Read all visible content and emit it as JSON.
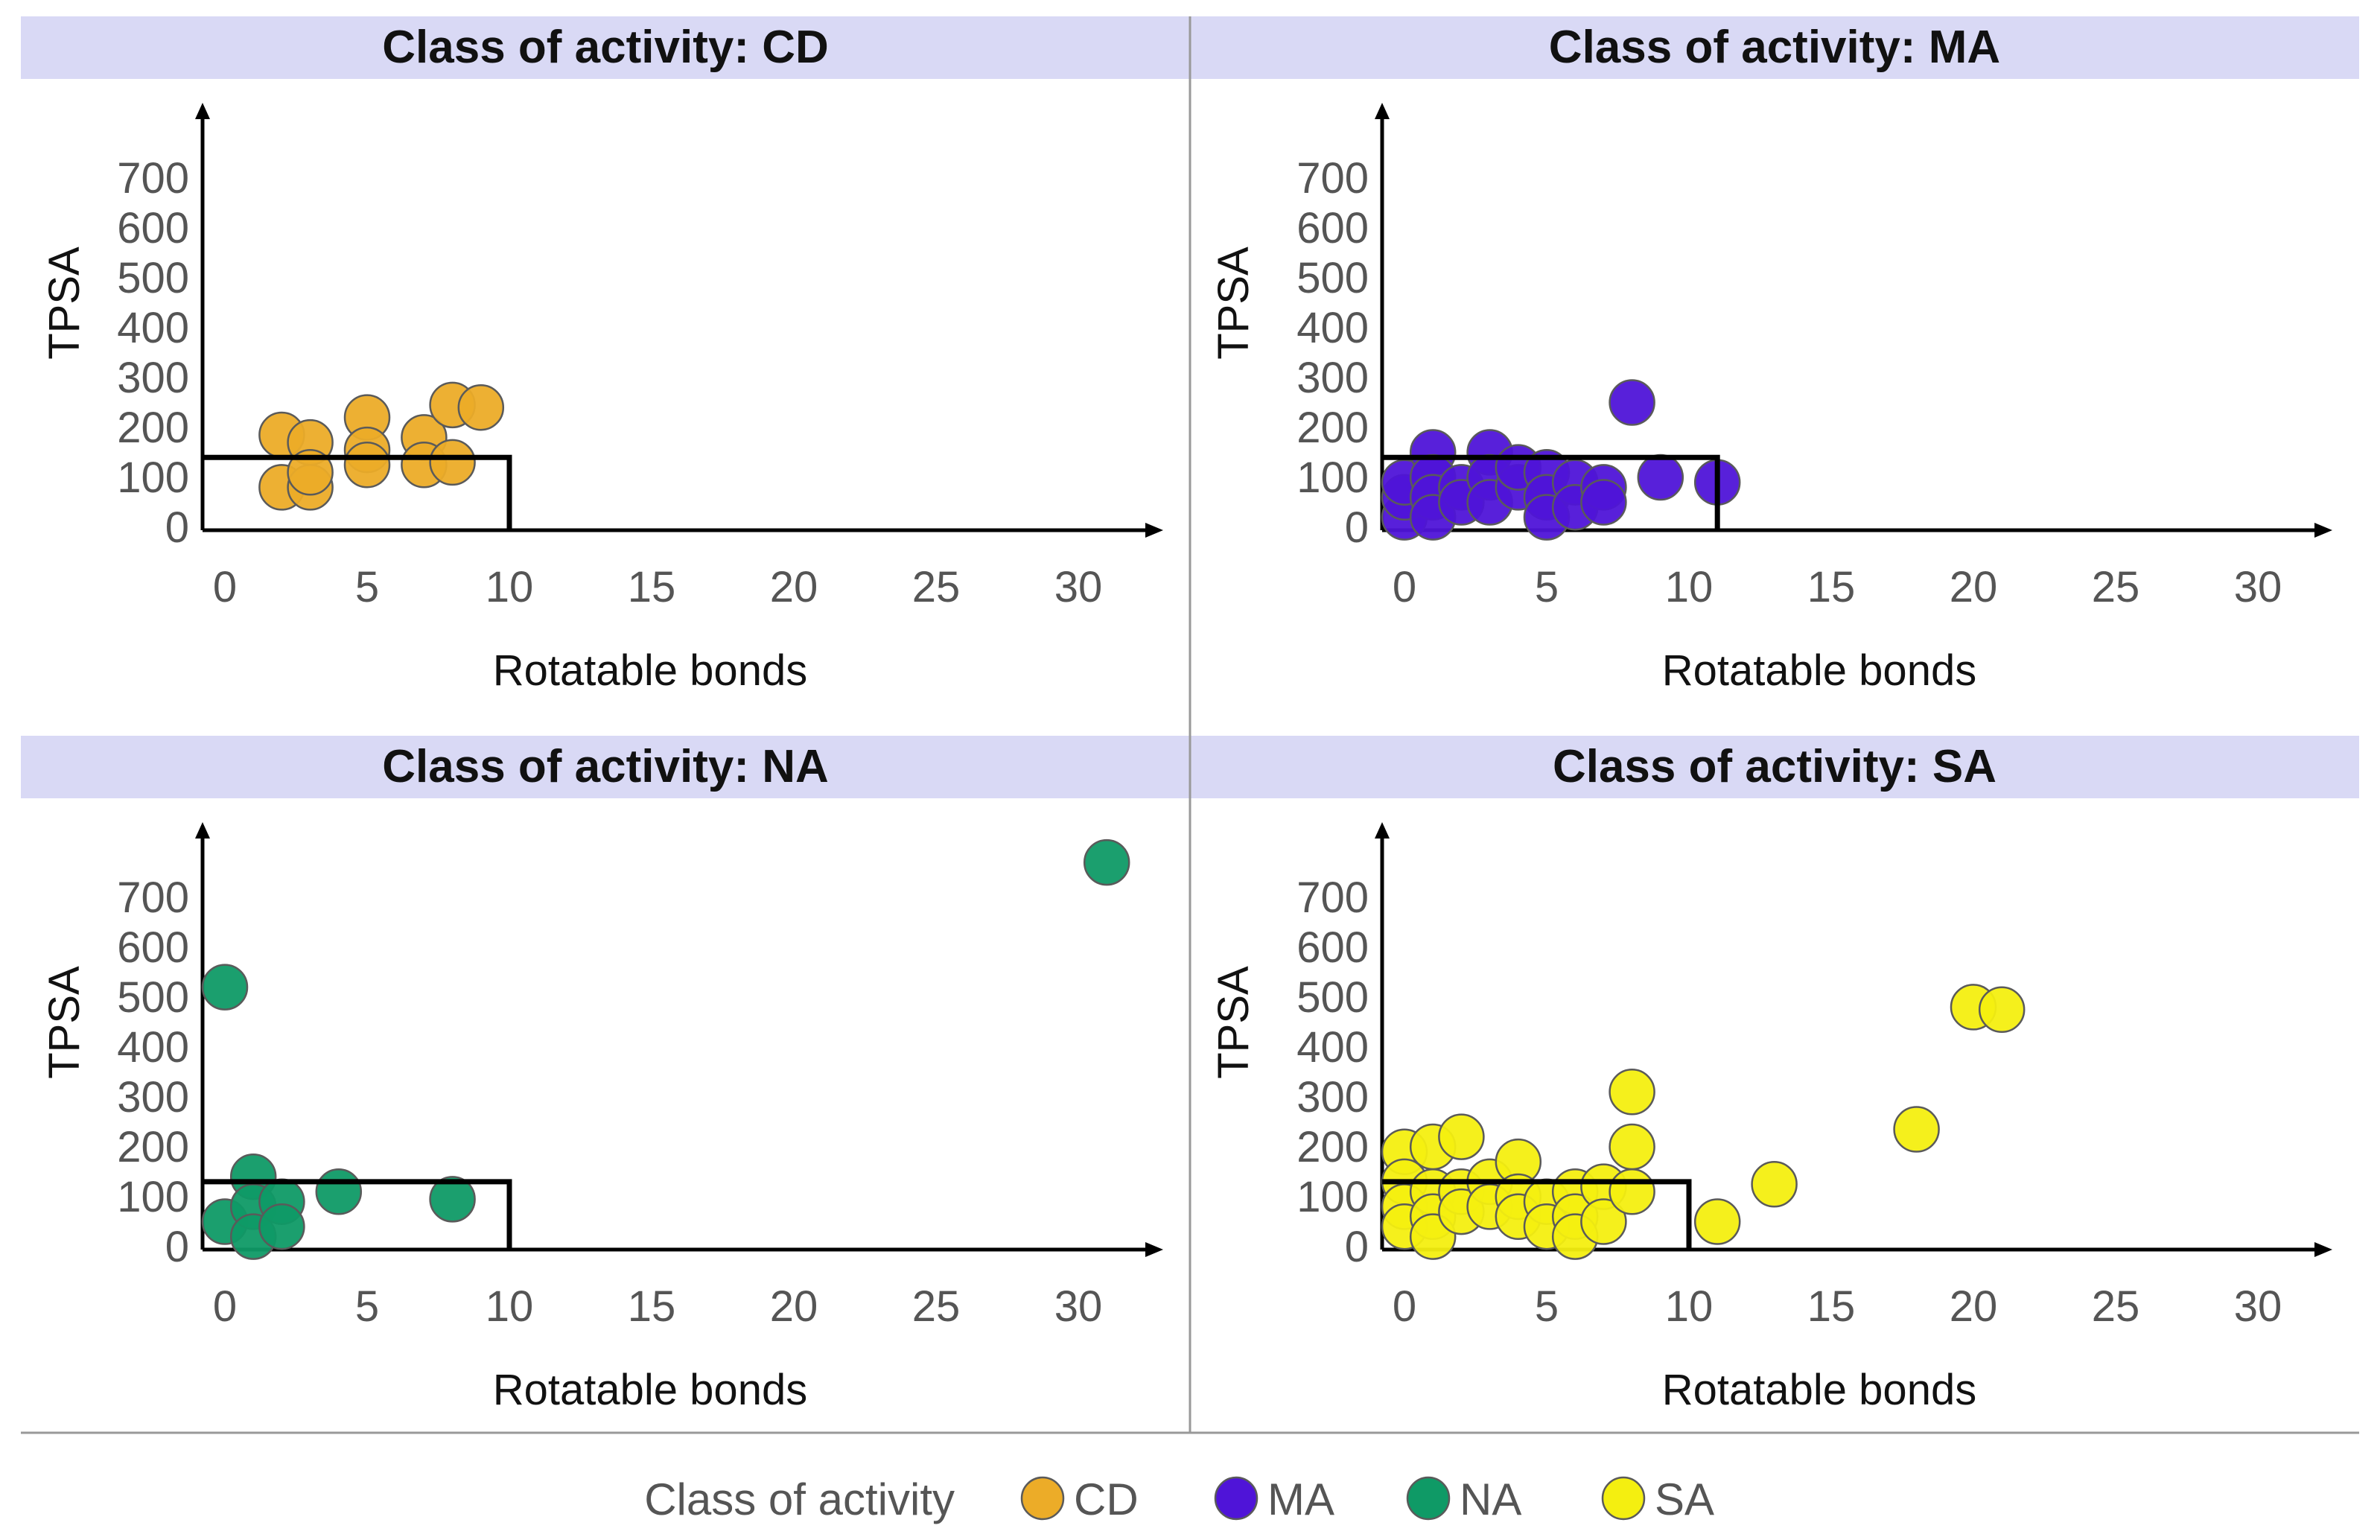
{
  "colors": {
    "strip_bg": "#d9d9f5",
    "CD": "#ecac28",
    "MA": "#4f14d8",
    "NA": "#0f9a66",
    "SA": "#f4ef10",
    "threshold": "#000000",
    "separator": "#999999"
  },
  "legend": {
    "title": "Class of activity",
    "items": [
      "CD",
      "MA",
      "NA",
      "SA"
    ]
  },
  "chart_data": [
    {
      "type": "scatter",
      "class": "CD",
      "title": "Class of activity: CD",
      "xlabel": "Rotatable bonds",
      "ylabel": "TPSA",
      "xlim": [
        -0.8,
        32.3
      ],
      "ylim": [
        -10,
        830
      ],
      "xticks": [
        0,
        5,
        10,
        15,
        20,
        25,
        30
      ],
      "yticks": [
        0,
        100,
        200,
        300,
        400,
        500,
        600,
        700
      ],
      "threshold": {
        "x": 10,
        "y": 140
      },
      "points": [
        [
          2,
          185
        ],
        [
          3,
          170
        ],
        [
          2,
          80
        ],
        [
          3,
          80
        ],
        [
          3,
          110
        ],
        [
          5,
          220
        ],
        [
          5,
          155
        ],
        [
          5,
          125
        ],
        [
          7,
          180
        ],
        [
          7,
          125
        ],
        [
          8,
          245
        ],
        [
          8,
          130
        ],
        [
          9,
          240
        ]
      ]
    },
    {
      "type": "scatter",
      "class": "MA",
      "title": "Class of activity: MA",
      "xlabel": "Rotatable bonds",
      "ylabel": "TPSA",
      "xlim": [
        -0.8,
        32.3
      ],
      "ylim": [
        -10,
        830
      ],
      "xticks": [
        0,
        5,
        10,
        15,
        20,
        25,
        30
      ],
      "yticks": [
        0,
        100,
        200,
        300,
        400,
        500,
        600,
        700
      ],
      "threshold": {
        "x": 11,
        "y": 140
      },
      "points": [
        [
          0,
          20
        ],
        [
          0,
          60
        ],
        [
          0,
          90
        ],
        [
          1,
          150
        ],
        [
          1,
          100
        ],
        [
          1,
          60
        ],
        [
          1,
          20
        ],
        [
          2,
          80
        ],
        [
          2,
          50
        ],
        [
          3,
          150
        ],
        [
          3,
          100
        ],
        [
          3,
          50
        ],
        [
          4,
          80
        ],
        [
          4,
          120
        ],
        [
          5,
          110
        ],
        [
          5,
          60
        ],
        [
          5,
          20
        ],
        [
          6,
          90
        ],
        [
          6,
          40
        ],
        [
          7,
          80
        ],
        [
          7,
          50
        ],
        [
          8,
          250
        ],
        [
          9,
          100
        ],
        [
          11,
          90
        ]
      ]
    },
    {
      "type": "scatter",
      "class": "NA",
      "title": "Class of activity: NA",
      "xlabel": "Rotatable bonds",
      "ylabel": "TPSA",
      "xlim": [
        -0.8,
        32.3
      ],
      "ylim": [
        -10,
        830
      ],
      "xticks": [
        0,
        5,
        10,
        15,
        20,
        25,
        30
      ],
      "yticks": [
        0,
        100,
        200,
        300,
        400,
        500,
        600,
        700
      ],
      "threshold": {
        "x": 10,
        "y": 130
      },
      "points": [
        [
          0,
          520
        ],
        [
          0,
          50
        ],
        [
          1,
          140
        ],
        [
          1,
          80
        ],
        [
          1,
          20
        ],
        [
          2,
          90
        ],
        [
          2,
          40
        ],
        [
          4,
          110
        ],
        [
          8,
          95
        ],
        [
          31,
          770
        ]
      ]
    },
    {
      "type": "scatter",
      "class": "SA",
      "title": "Class of activity: SA",
      "xlabel": "Rotatable bonds",
      "ylabel": "TPSA",
      "xlim": [
        -0.8,
        32.3
      ],
      "ylim": [
        -10,
        830
      ],
      "xticks": [
        0,
        5,
        10,
        15,
        20,
        25,
        30
      ],
      "yticks": [
        0,
        100,
        200,
        300,
        400,
        500,
        600,
        700
      ],
      "threshold": {
        "x": 10,
        "y": 130
      },
      "points": [
        [
          0,
          190
        ],
        [
          0,
          130
        ],
        [
          0,
          80
        ],
        [
          0,
          40
        ],
        [
          1,
          200
        ],
        [
          1,
          110
        ],
        [
          1,
          60
        ],
        [
          1,
          20
        ],
        [
          2,
          220
        ],
        [
          2,
          110
        ],
        [
          2,
          70
        ],
        [
          3,
          130
        ],
        [
          3,
          80
        ],
        [
          4,
          170
        ],
        [
          4,
          100
        ],
        [
          4,
          60
        ],
        [
          5,
          90
        ],
        [
          5,
          40
        ],
        [
          6,
          110
        ],
        [
          6,
          60
        ],
        [
          6,
          20
        ],
        [
          7,
          120
        ],
        [
          7,
          50
        ],
        [
          8,
          310
        ],
        [
          8,
          200
        ],
        [
          8,
          110
        ],
        [
          11,
          50
        ],
        [
          13,
          125
        ],
        [
          18,
          235
        ],
        [
          20,
          480
        ],
        [
          21,
          475
        ]
      ]
    }
  ]
}
